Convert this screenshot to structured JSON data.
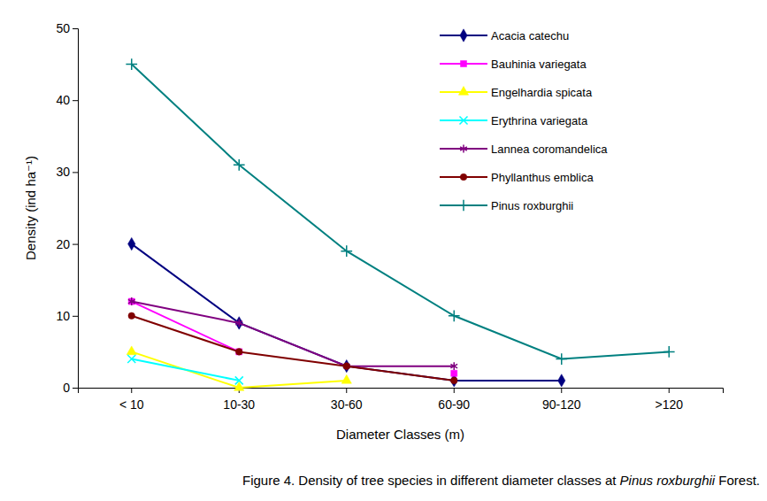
{
  "chart_data": {
    "type": "line",
    "title": "Figure 4. Density of tree species in different diameter classes at Pinus roxburghii Forest.",
    "x_label": "Diameter Classes (m)",
    "y_label": "Density (ind ha⁻¹)",
    "categories": [
      "< 10",
      "10-30",
      "30-60",
      "60-90",
      "90-120",
      ">120"
    ],
    "ylim": [
      0,
      50
    ],
    "yticks": [
      0,
      10,
      20,
      30,
      40,
      50
    ],
    "grid": false,
    "legend": "upper right",
    "series": [
      {
        "name": "Acacia catechu",
        "color": "#000080",
        "marker": "diamond",
        "values": [
          20,
          9,
          3,
          1,
          1,
          null
        ]
      },
      {
        "name": "Bauhinia variegata",
        "color": "#FF00FF",
        "marker": "square",
        "values": [
          12,
          5,
          null,
          2,
          null,
          null
        ]
      },
      {
        "name": "Engelhardia spicata",
        "color": "#FFFF00",
        "marker": "triangle",
        "values": [
          5,
          0,
          1,
          null,
          null,
          null
        ]
      },
      {
        "name": "Erythrina  variegata",
        "color": "#00FFFF",
        "marker": "x",
        "values": [
          4,
          1,
          null,
          null,
          null,
          null
        ]
      },
      {
        "name": "Lannea coromandelica",
        "color": "#800080",
        "marker": "star",
        "values": [
          12,
          9,
          3,
          3,
          null,
          null
        ]
      },
      {
        "name": "Phyllanthus emblica",
        "color": "#800000",
        "marker": "circle",
        "values": [
          10,
          5,
          3,
          1,
          null,
          null
        ]
      },
      {
        "name": "Pinus roxburghii",
        "color": "#008080",
        "marker": "plus",
        "values": [
          45,
          31,
          19,
          10,
          4,
          5
        ]
      }
    ]
  }
}
